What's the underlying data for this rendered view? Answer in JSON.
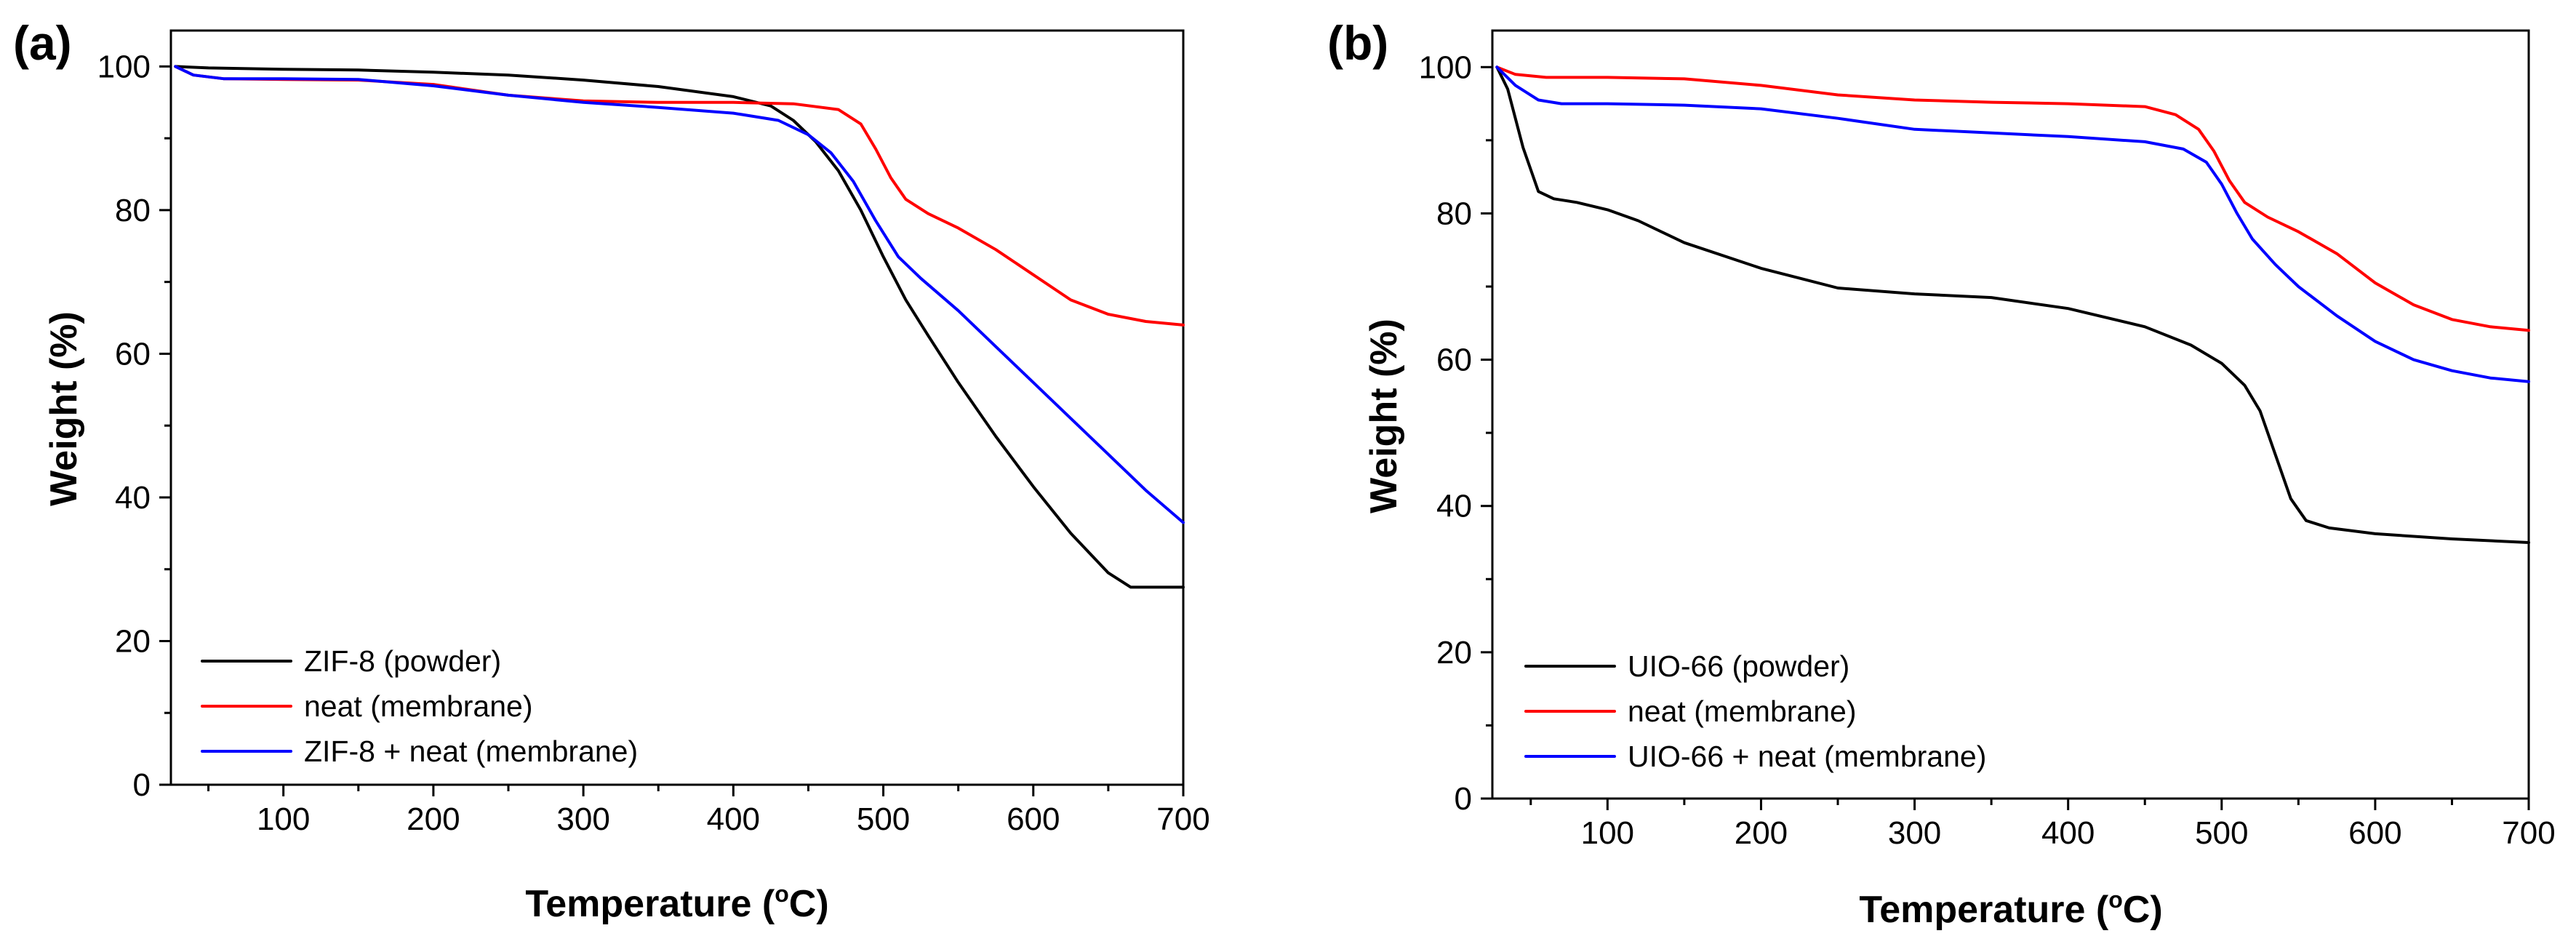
{
  "chart_data": [
    {
      "type": "line",
      "panel_label": "(a)",
      "xlabel": "Temperature (",
      "xlabel_unit": "o",
      "xlabel_tail": "C)",
      "ylabel": "Weight (%)",
      "xlim": [
        25,
        700
      ],
      "ylim": [
        0,
        105
      ],
      "xticks": [
        100,
        200,
        300,
        400,
        500,
        600,
        700
      ],
      "yticks": [
        0,
        20,
        40,
        60,
        80,
        100
      ],
      "legend_position": "bottom-left",
      "series": [
        {
          "name": "ZIF-8 (powder)",
          "color": "#000000",
          "x": [
            28,
            50,
            100,
            150,
            200,
            250,
            300,
            350,
            400,
            425,
            440,
            455,
            470,
            485,
            500,
            515,
            530,
            550,
            575,
            600,
            625,
            650,
            665,
            680,
            700
          ],
          "y": [
            100,
            99.8,
            99.6,
            99.5,
            99.2,
            98.8,
            98.1,
            97.2,
            95.8,
            94.5,
            92.5,
            89.5,
            85.5,
            80,
            73.5,
            67.5,
            62.5,
            56,
            48.5,
            41.5,
            35,
            29.5,
            27.5,
            27.5,
            27.5
          ]
        },
        {
          "name": "neat (membrane)",
          "color": "#ff0000",
          "x": [
            28,
            40,
            60,
            100,
            150,
            200,
            250,
            300,
            350,
            400,
            440,
            470,
            485,
            495,
            505,
            515,
            530,
            550,
            575,
            600,
            625,
            650,
            675,
            700
          ],
          "y": [
            100,
            98.8,
            98.3,
            98.2,
            98.1,
            97.5,
            96,
            95.2,
            95,
            95,
            94.8,
            94,
            92,
            88.5,
            84.5,
            81.5,
            79.5,
            77.5,
            74.5,
            71,
            67.5,
            65.5,
            64.5,
            64
          ]
        },
        {
          "name": "ZIF-8 + neat (membrane)",
          "color": "#0000ff",
          "x": [
            28,
            40,
            60,
            100,
            150,
            200,
            250,
            300,
            350,
            400,
            430,
            450,
            465,
            480,
            495,
            510,
            525,
            550,
            575,
            600,
            625,
            650,
            675,
            700
          ],
          "y": [
            100,
            98.8,
            98.3,
            98.3,
            98.2,
            97.3,
            96,
            95,
            94.3,
            93.5,
            92.5,
            90.5,
            88,
            84,
            78.5,
            73.5,
            70.5,
            66,
            61,
            56,
            51,
            46,
            41,
            36.5
          ]
        }
      ]
    },
    {
      "type": "line",
      "panel_label": "(b)",
      "xlabel": "Temperature (",
      "xlabel_unit": "o",
      "xlabel_tail": "C)",
      "ylabel": "Weight (%)",
      "xlim": [
        25,
        700
      ],
      "ylim": [
        0,
        105
      ],
      "xticks": [
        100,
        200,
        300,
        400,
        500,
        600,
        700
      ],
      "yticks": [
        0,
        20,
        40,
        60,
        80,
        100
      ],
      "legend_position": "bottom-left",
      "series": [
        {
          "name": "UIO-66 (powder)",
          "color": "#000000",
          "x": [
            28,
            35,
            45,
            55,
            65,
            80,
            100,
            120,
            150,
            200,
            250,
            300,
            350,
            400,
            450,
            480,
            500,
            515,
            525,
            535,
            545,
            555,
            570,
            600,
            650,
            700
          ],
          "y": [
            100,
            97,
            89,
            83,
            82,
            81.5,
            80.5,
            79,
            76,
            72.5,
            69.8,
            69,
            68.5,
            67,
            64.5,
            62,
            59.5,
            56.5,
            53,
            47,
            41,
            38,
            37,
            36.2,
            35.5,
            35
          ]
        },
        {
          "name": "neat (membrane)",
          "color": "#ff0000",
          "x": [
            28,
            40,
            60,
            100,
            150,
            200,
            250,
            300,
            350,
            400,
            450,
            470,
            485,
            495,
            505,
            515,
            530,
            550,
            575,
            600,
            625,
            650,
            675,
            700
          ],
          "y": [
            100,
            99,
            98.6,
            98.6,
            98.4,
            97.5,
            96.2,
            95.5,
            95.2,
            95,
            94.6,
            93.5,
            91.5,
            88.5,
            84.5,
            81.5,
            79.5,
            77.5,
            74.5,
            70.5,
            67.5,
            65.5,
            64.5,
            64
          ]
        },
        {
          "name": "UIO-66 + neat (membrane)",
          "color": "#0000ff",
          "x": [
            28,
            40,
            55,
            70,
            100,
            150,
            200,
            250,
            300,
            350,
            400,
            450,
            475,
            490,
            500,
            510,
            520,
            535,
            550,
            575,
            600,
            625,
            650,
            675,
            700
          ],
          "y": [
            100,
            97.5,
            95.5,
            95,
            95,
            94.8,
            94.3,
            93,
            91.5,
            91,
            90.5,
            89.8,
            88.8,
            87,
            84,
            80,
            76.5,
            73,
            70,
            66,
            62.5,
            60,
            58.5,
            57.5,
            57
          ]
        }
      ]
    }
  ]
}
